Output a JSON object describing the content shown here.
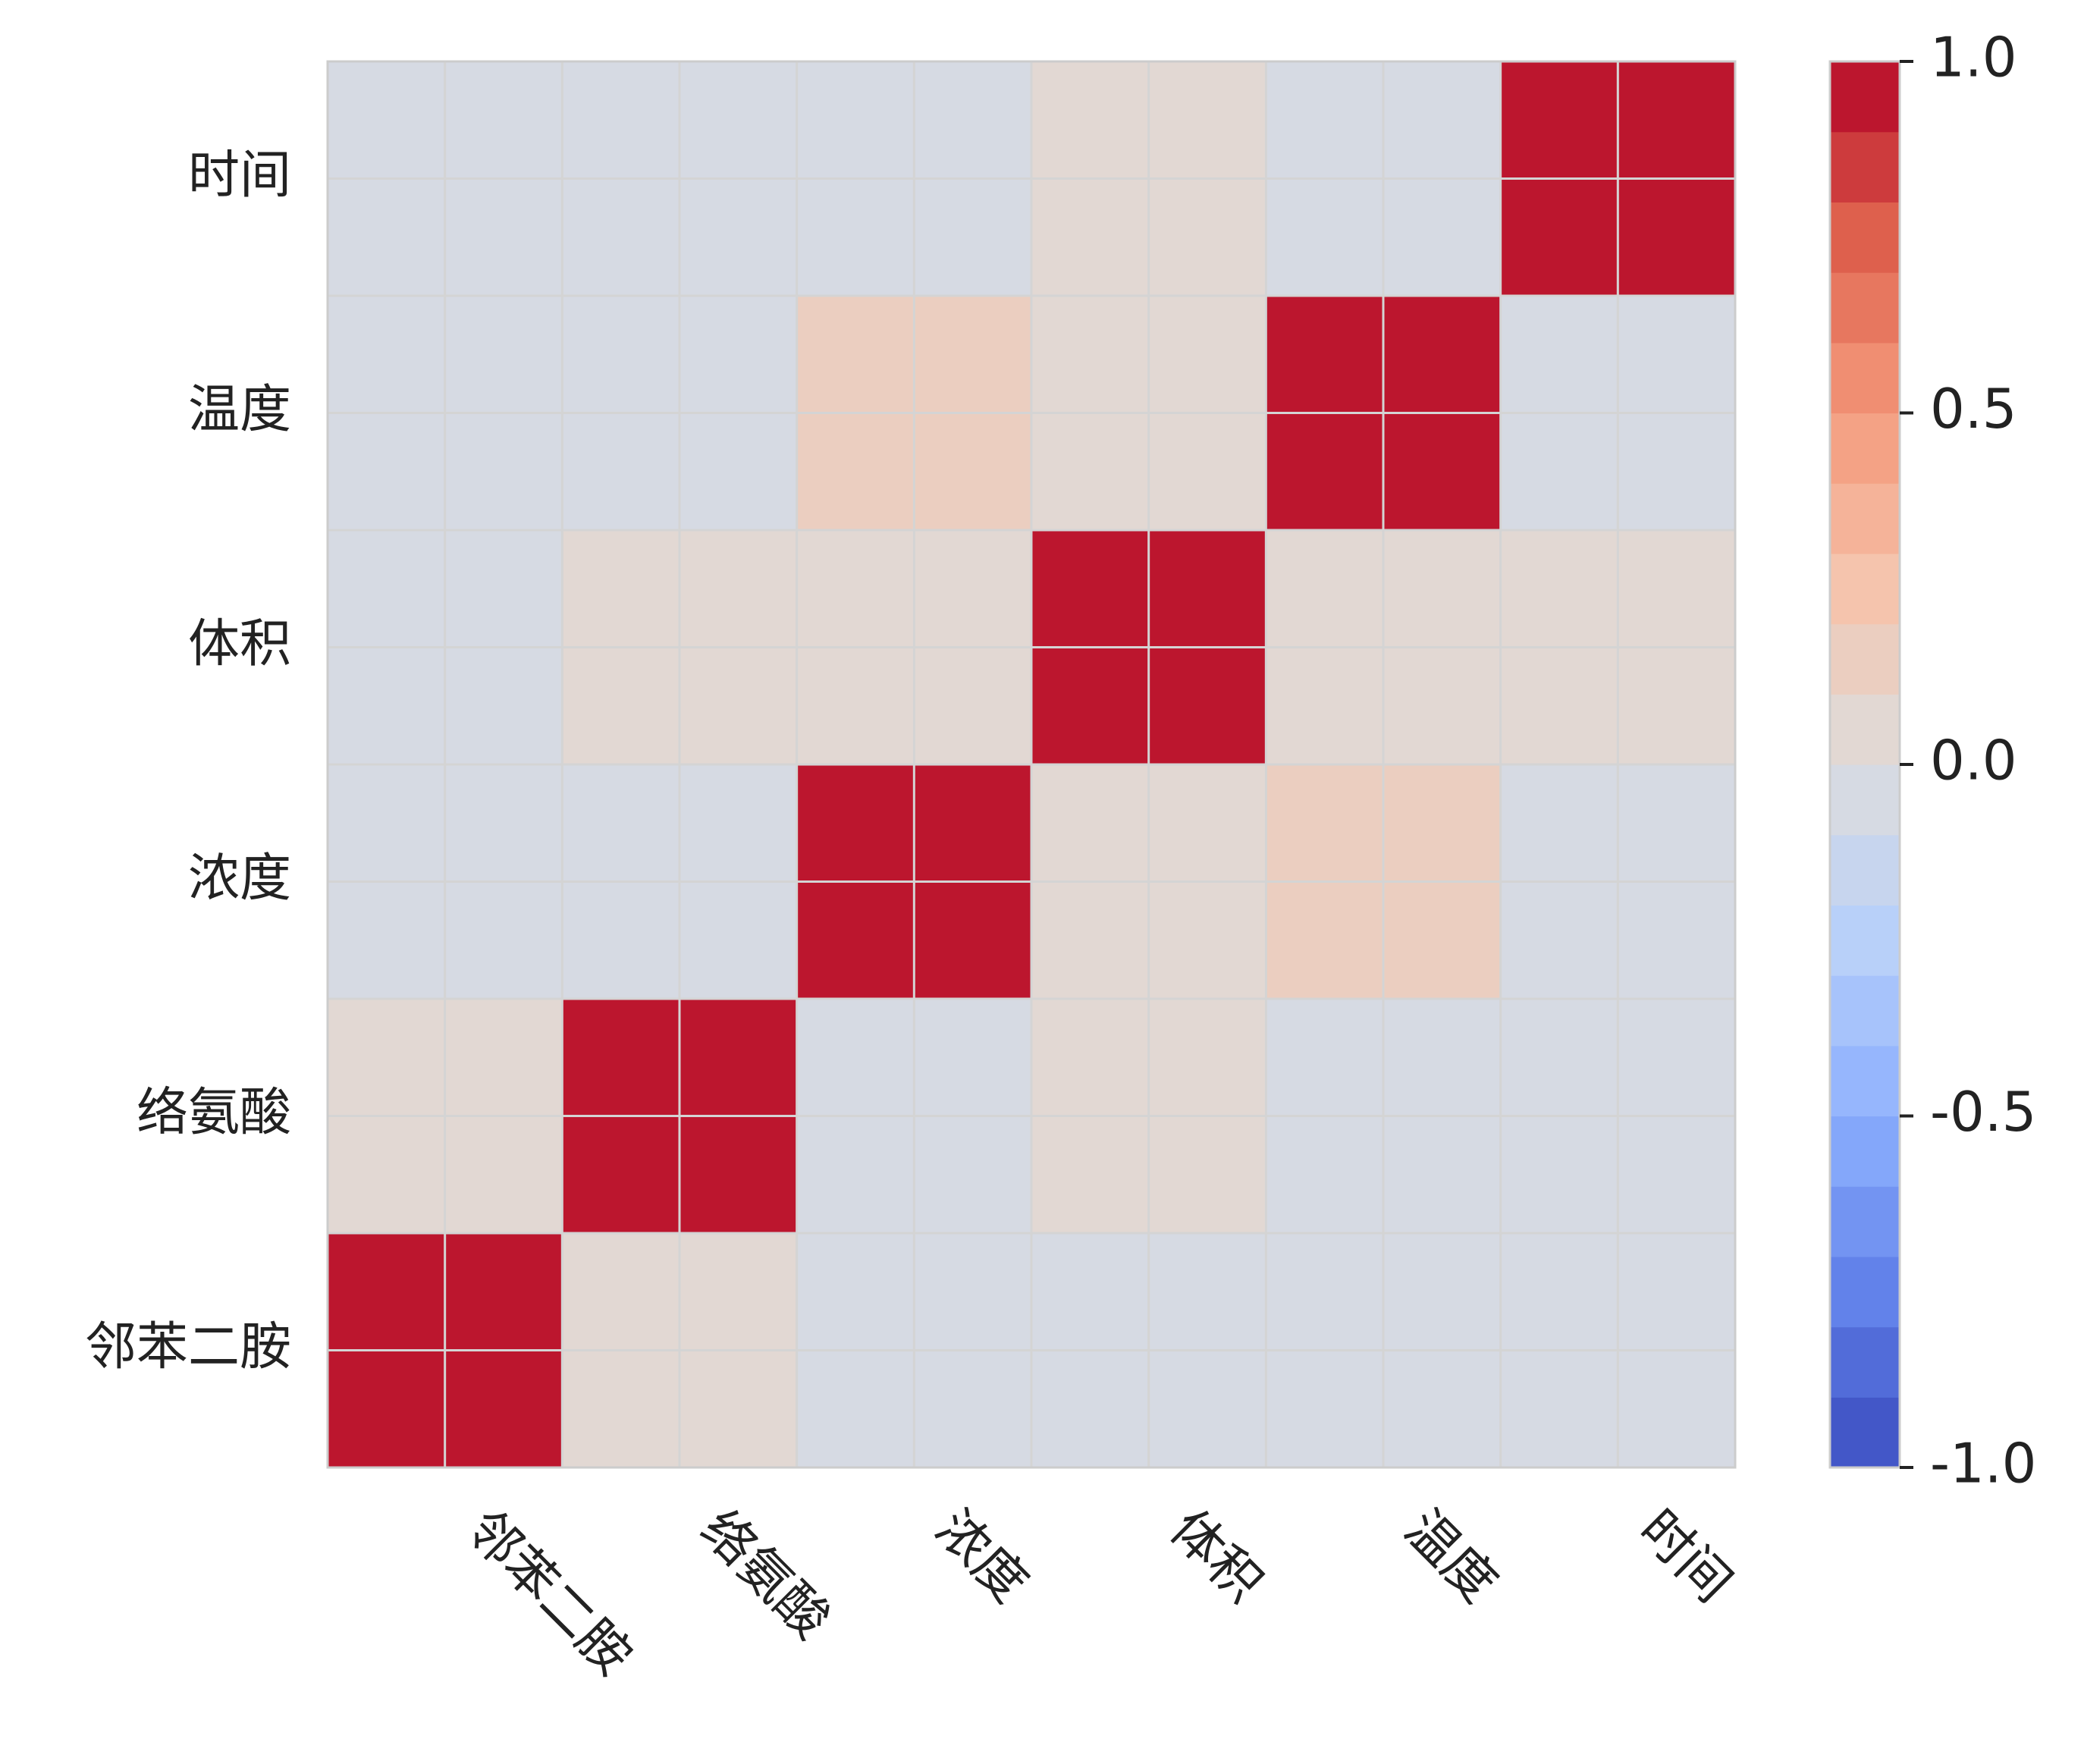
{
  "chart_data": {
    "type": "heatmap",
    "title": "",
    "xlabel": "",
    "ylabel": "",
    "rows_top_to_bottom": [
      "时间",
      "温度",
      "体积",
      "浓度",
      "络氨酸",
      "邻苯二胺"
    ],
    "columns_left_to_right": [
      "邻苯二胺",
      "络氨酸",
      "浓度",
      "体积",
      "温度",
      "时间"
    ],
    "values": [
      [
        -0.1,
        -0.1,
        -0.05,
        0.05,
        -0.05,
        1.0
      ],
      [
        -0.1,
        -0.05,
        0.1,
        0.05,
        1.0,
        -0.05
      ],
      [
        -0.05,
        0.05,
        0.05,
        1.0,
        0.05,
        0.05
      ],
      [
        -0.05,
        -0.05,
        1.0,
        0.05,
        0.1,
        -0.05
      ],
      [
        0.05,
        1.0,
        -0.05,
        0.05,
        -0.05,
        -0.1
      ],
      [
        1.0,
        0.05,
        -0.05,
        -0.05,
        -0.1,
        -0.1
      ]
    ],
    "vmin": -1.0,
    "vmax": 1.0,
    "colormap": "coolwarm",
    "colorbar_levels": 20,
    "colorbar_ticks": [
      "1.0",
      "0.5",
      "0.0",
      "-0.5",
      "-1.0"
    ],
    "colorbar_tick_values": [
      1.0,
      0.5,
      0.0,
      -0.5,
      -1.0
    ],
    "x_tick_rotation_deg": 45,
    "grid": true,
    "grid_color": "#d4d4d4",
    "text_color": "#222222"
  }
}
